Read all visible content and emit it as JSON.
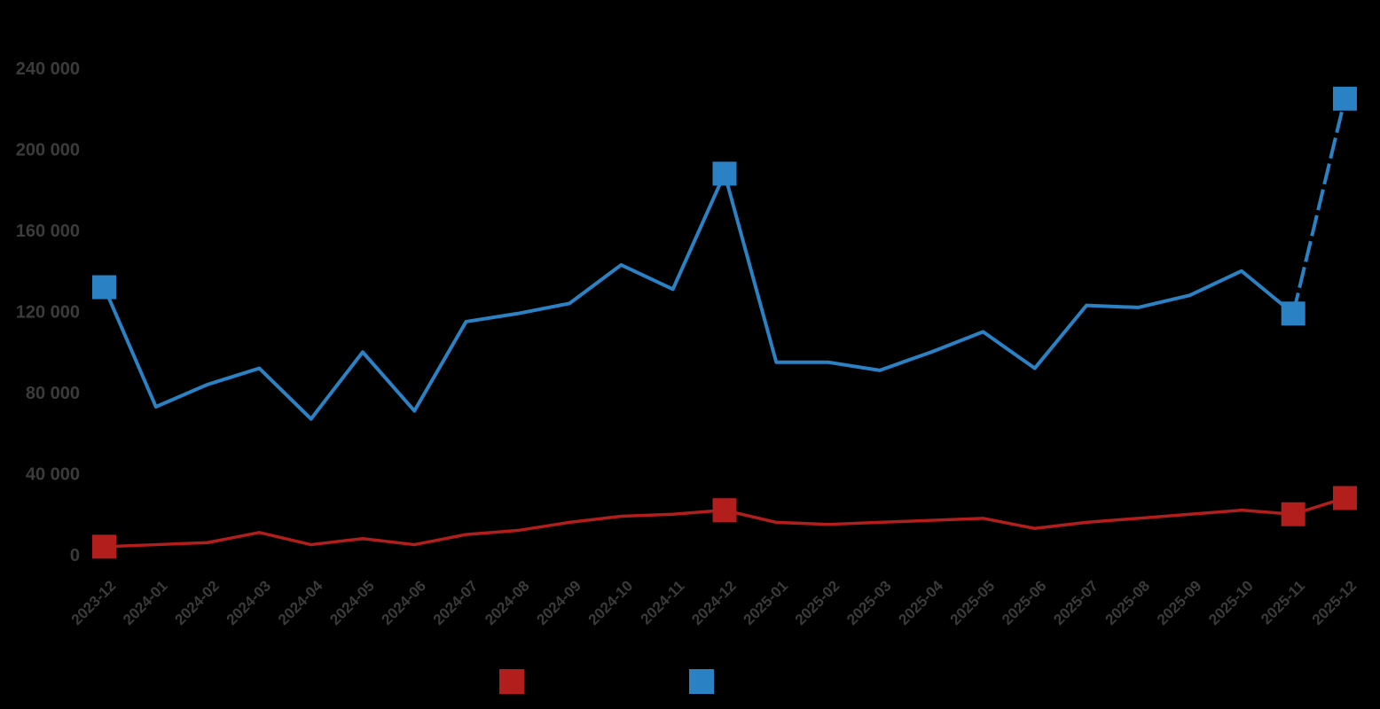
{
  "chart_data": {
    "type": "line",
    "title": "",
    "xlabel": "",
    "ylabel": "",
    "grid": false,
    "legend_position": "bottom",
    "background_color": "#000000",
    "text_color": "#3b3b3b",
    "ylim": [
      0,
      240000
    ],
    "yticks": {
      "values": [
        0,
        40000,
        80000,
        120000,
        160000,
        200000,
        240000
      ],
      "labels": [
        "0",
        "40 000",
        "80 000",
        "120 000",
        "160 000",
        "200 000",
        "240 000"
      ]
    },
    "categories": [
      "2023-12",
      "2024-01",
      "2024-02",
      "2024-03",
      "2024-04",
      "2024-05",
      "2024-06",
      "2024-07",
      "2024-08",
      "2024-09",
      "2024-10",
      "2024-11",
      "2024-12",
      "2025-01",
      "2025-02",
      "2025-03",
      "2025-04",
      "2025-05",
      "2025-06",
      "2025-07",
      "2025-08",
      "2025-09",
      "2025-10",
      "2025-11",
      "2025-12"
    ],
    "series": [
      {
        "id": "red",
        "label": "",
        "color": "#b11e1c",
        "line_width": 3.5,
        "marker": "square",
        "marker_size": 27,
        "marker_indices": [
          0,
          12,
          23,
          24
        ],
        "dashed_last_segment": false,
        "values": [
          4000,
          5000,
          6000,
          11000,
          5000,
          8000,
          5000,
          10000,
          12000,
          16000,
          19000,
          20000,
          22000,
          16000,
          15000,
          16000,
          17000,
          18000,
          13000,
          16000,
          18000,
          20000,
          22000,
          20000,
          28000
        ]
      },
      {
        "id": "blue",
        "label": "",
        "color": "#2a81c3",
        "line_width": 4,
        "marker": "square",
        "marker_size": 27,
        "marker_indices": [
          0,
          12,
          23,
          24
        ],
        "dashed_last_segment": true,
        "values": [
          132000,
          73000,
          84000,
          92000,
          67000,
          100000,
          71000,
          115000,
          119000,
          124000,
          143000,
          131000,
          188000,
          95000,
          95000,
          91000,
          100000,
          110000,
          92000,
          123000,
          122000,
          128000,
          140000,
          119000,
          225000
        ]
      }
    ]
  },
  "legend": {
    "items": [
      {
        "series_id": "red",
        "label": ""
      },
      {
        "series_id": "blue",
        "label": ""
      }
    ]
  }
}
